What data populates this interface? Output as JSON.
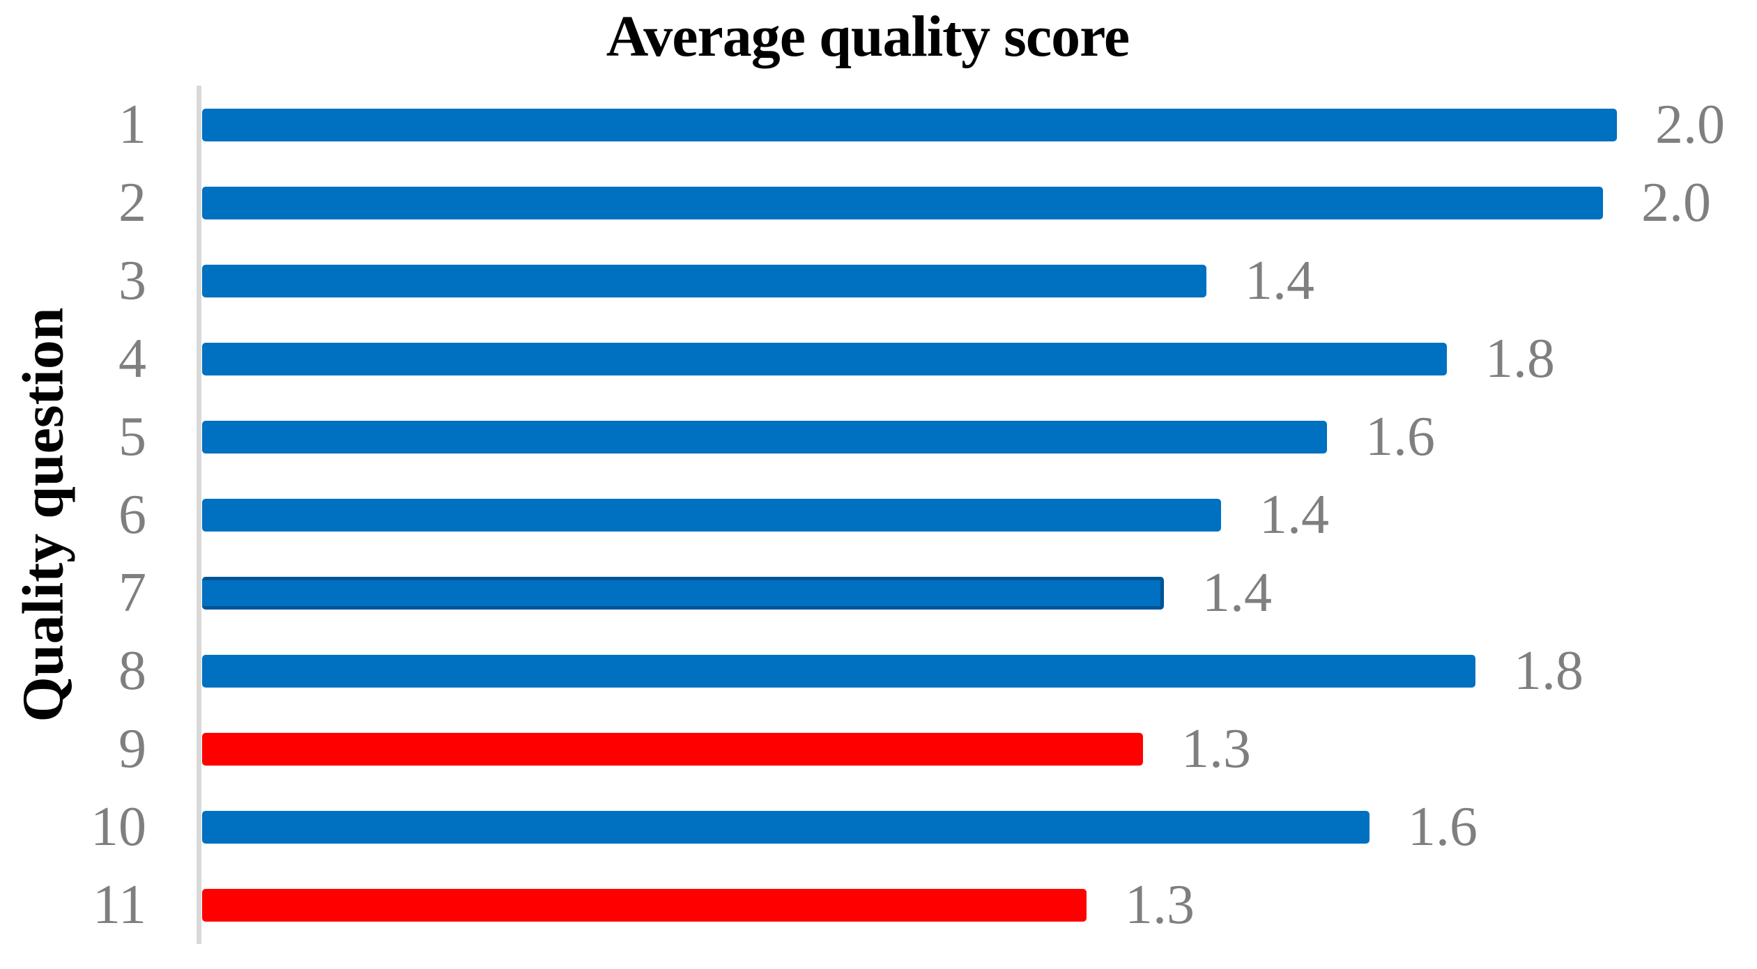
{
  "figure": {
    "title": "Average quality score",
    "y_axis_title": "Quality question"
  },
  "chart_data": {
    "type": "bar",
    "orientation": "horizontal",
    "title": "Average quality score",
    "xlabel": "",
    "ylabel": "Quality question",
    "xlim": [
      0,
      2.0
    ],
    "grid": false,
    "legend": false,
    "data_labels_position": "outside-end",
    "categories": [
      "1",
      "2",
      "3",
      "4",
      "5",
      "6",
      "7",
      "8",
      "9",
      "10",
      "11"
    ],
    "values": [
      2.0,
      2.0,
      1.4,
      1.8,
      1.6,
      1.4,
      1.4,
      1.8,
      1.3,
      1.6,
      1.3
    ],
    "value_labels": [
      "2.0",
      "2.0",
      "1.4",
      "1.8",
      "1.6",
      "1.4",
      "1.4",
      "1.8",
      "1.3",
      "1.6",
      "1.3"
    ],
    "values_precise_estimate": [
      2.0,
      1.98,
      1.42,
      1.76,
      1.59,
      1.44,
      1.36,
      1.8,
      1.33,
      1.65,
      1.25
    ],
    "bar_color_keys": [
      "blue",
      "blue",
      "blue",
      "blue",
      "blue",
      "blue",
      "blue",
      "blue",
      "red",
      "blue",
      "red"
    ],
    "highlighted_category": "7",
    "colors": {
      "blue": "#0070C0",
      "red": "#FF0000",
      "highlight_border": "#005496",
      "axis_line": "#D9D9D9",
      "tick_label": "#7F7F7F",
      "title_text": "#000000"
    }
  }
}
